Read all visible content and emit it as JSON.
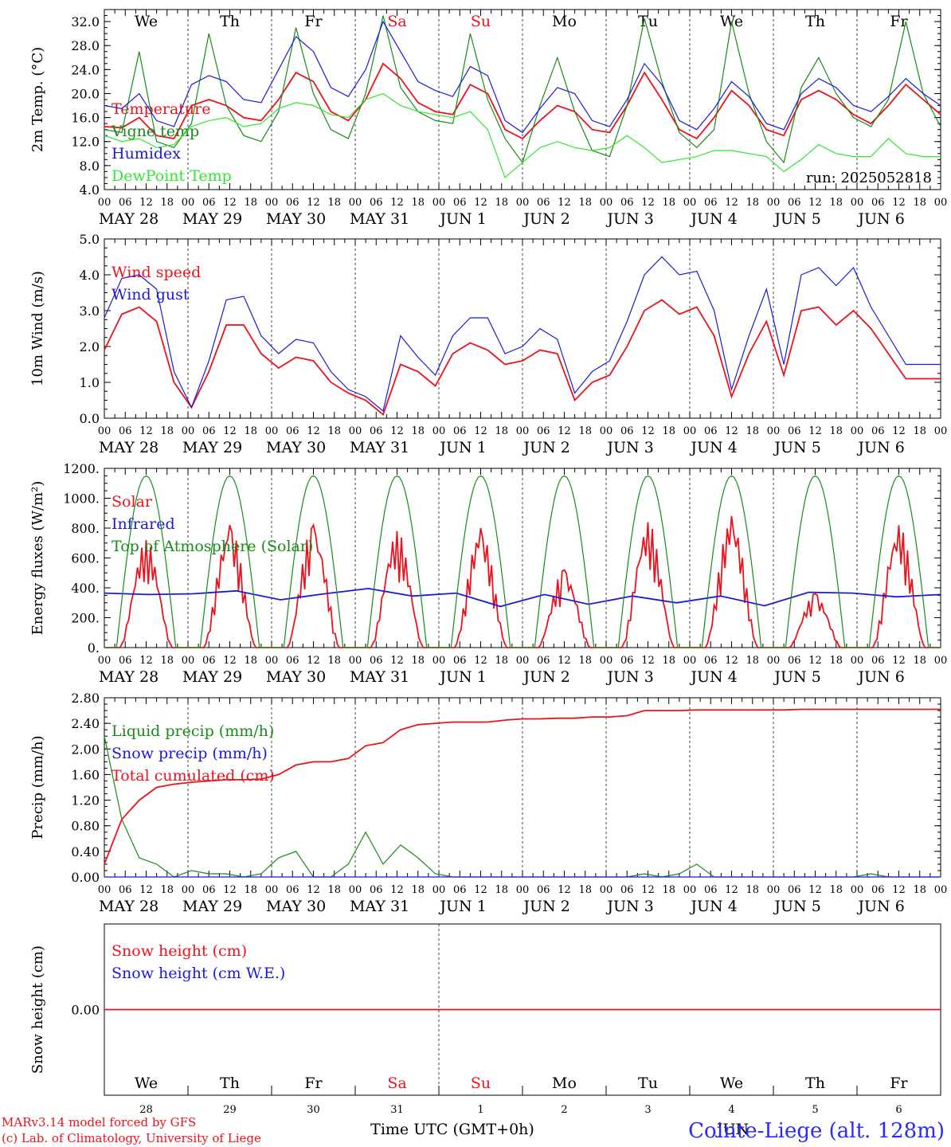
{
  "colors": {
    "temperature": "#e8141e",
    "vigne": "#1a8a1a",
    "humidex": "#1a1ad8",
    "dewpoint": "#2ee82e",
    "grid": "#444444",
    "axis": "#000000",
    "weekend": "#e8141e"
  },
  "time_axis": {
    "hour_labels": [
      "00",
      "06",
      "12",
      "18"
    ],
    "final_hour_label": "00",
    "dates": [
      "MAY 28",
      "MAY 29",
      "MAY 30",
      "MAY 31",
      "JUN  1",
      "JUN  2",
      "JUN  3",
      "JUN  4",
      "JUN  5",
      "JUN  6"
    ],
    "weekdays": [
      {
        "label": "We",
        "weekend": false
      },
      {
        "label": "Th",
        "weekend": false
      },
      {
        "label": "Fr",
        "weekend": false
      },
      {
        "label": "Sa",
        "weekend": true
      },
      {
        "label": "Su",
        "weekend": true
      },
      {
        "label": "Mo",
        "weekend": false
      },
      {
        "label": "Tu",
        "weekend": false
      },
      {
        "label": "We",
        "weekend": false
      },
      {
        "label": "Th",
        "weekend": false
      },
      {
        "label": "Fr",
        "weekend": false
      }
    ],
    "day_numbers": [
      "28",
      "29",
      "30",
      "31",
      "1",
      "2",
      "3",
      "4",
      "5",
      "6"
    ],
    "bottom_label": "Time UTC (GMT+0h)",
    "month_label": "JUN"
  },
  "footer": {
    "model_line": "MARv3.14 model forced by GFS",
    "copyright_line": "(c) Lab. of Climatology, University of Liege",
    "station": "Cointe-Liege (alt. 128m)"
  },
  "chart_data": [
    {
      "type": "line",
      "id": "temperature",
      "ylabel": "2m Temp. (°C)",
      "yticks": [
        "4.0",
        "8.0",
        "12.0",
        "16.0",
        "20.0",
        "24.0",
        "28.0",
        "32.0"
      ],
      "ylim": [
        4,
        34
      ],
      "run_label": "run: 2025052818",
      "x_unit": "hours since MAY 28 00 UTC (step 6h)",
      "series": [
        {
          "name": "Temperature",
          "color_key": "temperature",
          "values": [
            14.5,
            14.3,
            16.0,
            13.0,
            12.5,
            18.0,
            19.0,
            18.0,
            16.0,
            15.5,
            19.0,
            23.5,
            22.0,
            17.0,
            15.5,
            19.0,
            25.0,
            22.5,
            18.5,
            17.0,
            16.5,
            21.5,
            20.0,
            14.0,
            12.5,
            15.5,
            18.0,
            17.0,
            14.0,
            13.5,
            18.0,
            23.5,
            19.0,
            14.0,
            12.5,
            16.0,
            20.5,
            18.0,
            14.0,
            13.0,
            19.0,
            20.5,
            19.0,
            16.5,
            15.0,
            18.0,
            21.5,
            19.0,
            16.5
          ]
        },
        {
          "name": "Vigne temp",
          "color_key": "vigne",
          "values": [
            14.0,
            13.5,
            27.0,
            12.0,
            11.0,
            15.0,
            30.0,
            18.0,
            13.0,
            12.0,
            17.0,
            31.0,
            20.0,
            14.0,
            12.5,
            20.0,
            33.0,
            21.0,
            17.0,
            15.5,
            15.0,
            30.0,
            19.0,
            12.5,
            8.5,
            18.0,
            26.0,
            17.0,
            10.5,
            9.5,
            18.0,
            32.5,
            22.0,
            13.5,
            11.0,
            14.0,
            32.0,
            20.0,
            12.0,
            8.5,
            21.0,
            26.0,
            20.0,
            16.0,
            14.5,
            19.0,
            32.0,
            20.0,
            14.5
          ]
        },
        {
          "name": "Humidex",
          "color_key": "humidex",
          "values": [
            18.0,
            17.5,
            20.0,
            15.5,
            14.5,
            21.5,
            23.0,
            22.0,
            19.0,
            18.5,
            24.0,
            29.5,
            27.0,
            21.0,
            19.5,
            24.0,
            32.0,
            27.0,
            22.0,
            20.5,
            19.5,
            24.5,
            23.0,
            15.5,
            13.5,
            17.5,
            21.0,
            20.0,
            15.5,
            14.5,
            19.0,
            25.0,
            21.5,
            15.5,
            14.0,
            17.5,
            22.0,
            19.5,
            15.0,
            14.0,
            20.0,
            22.5,
            21.0,
            18.0,
            17.0,
            19.5,
            22.5,
            20.0,
            18.0
          ]
        },
        {
          "name": "DewPoint Temp",
          "color_key": "dewpoint",
          "values": [
            13.0,
            12.0,
            12.5,
            11.0,
            11.5,
            14.5,
            15.5,
            16.0,
            14.5,
            15.0,
            17.5,
            18.5,
            18.0,
            16.5,
            16.0,
            19.0,
            20.0,
            18.0,
            17.0,
            16.5,
            16.0,
            17.0,
            14.0,
            6.0,
            8.5,
            11.0,
            12.0,
            11.0,
            10.5,
            11.0,
            13.0,
            11.0,
            8.5,
            9.0,
            9.5,
            10.5,
            10.5,
            10.0,
            9.5,
            7.0,
            9.0,
            11.5,
            10.0,
            9.5,
            9.5,
            12.5,
            10.0,
            9.5,
            9.5
          ]
        }
      ]
    },
    {
      "type": "line",
      "id": "wind",
      "ylabel": "10m Wind (m/s)",
      "yticks": [
        "0.0",
        "1.0",
        "2.0",
        "3.0",
        "4.0",
        "5.0"
      ],
      "ylim": [
        0,
        5
      ],
      "x_unit": "hours since MAY 28 00 UTC (step 6h)",
      "series": [
        {
          "name": "Wind speed",
          "color_key": "temperature",
          "values": [
            1.9,
            2.9,
            3.1,
            2.7,
            1.0,
            0.3,
            1.3,
            2.6,
            2.6,
            1.8,
            1.4,
            1.7,
            1.6,
            1.0,
            0.7,
            0.5,
            0.1,
            1.5,
            1.3,
            0.9,
            1.8,
            2.1,
            1.9,
            1.5,
            1.6,
            1.9,
            1.8,
            0.5,
            1.0,
            1.2,
            2.0,
            3.0,
            3.3,
            2.9,
            3.1,
            2.3,
            0.6,
            1.8,
            2.7,
            1.2,
            3.0,
            3.1,
            2.6,
            3.0,
            2.5,
            1.8,
            1.1,
            1.1,
            1.1
          ]
        },
        {
          "name": "Wind gust",
          "color_key": "humidex",
          "values": [
            2.8,
            3.9,
            4.0,
            3.6,
            1.3,
            0.3,
            1.6,
            3.3,
            3.4,
            2.3,
            1.8,
            2.2,
            2.1,
            1.3,
            0.8,
            0.6,
            0.2,
            2.3,
            1.7,
            1.2,
            2.3,
            2.8,
            2.8,
            1.8,
            2.0,
            2.5,
            2.2,
            0.7,
            1.3,
            1.6,
            2.7,
            4.0,
            4.5,
            4.0,
            4.1,
            3.0,
            0.8,
            2.3,
            3.6,
            1.5,
            4.0,
            4.2,
            3.7,
            4.2,
            3.1,
            2.3,
            1.5,
            1.5,
            1.5
          ]
        }
      ]
    },
    {
      "type": "line",
      "id": "energy",
      "ylabel": "Energy fluxes (W/m²)",
      "yticks": [
        "0.",
        "200.",
        "400.",
        "600.",
        "800.",
        "1000.",
        "1200."
      ],
      "ylim": [
        0,
        1200
      ],
      "x_unit": "hours since MAY 28 00 UTC",
      "series": [
        {
          "name": "Solar",
          "color_key": "temperature",
          "note": "daily peak values",
          "values": [
            720,
            820,
            820,
            780,
            800,
            520,
            840,
            880,
            360,
            820
          ]
        },
        {
          "name": "Infrared",
          "color_key": "humidex",
          "values": [
            365,
            355,
            360,
            380,
            320,
            360,
            395,
            345,
            365,
            275,
            355,
            290,
            345,
            300,
            345,
            280,
            370,
            365,
            340,
            355
          ]
        },
        {
          "name": "Top of Atmosphere (Solar)",
          "color_key": "vigne",
          "note": "daily peak values",
          "values": [
            1150,
            1150,
            1150,
            1150,
            1150,
            1150,
            1150,
            1150,
            1150,
            1150
          ]
        }
      ]
    },
    {
      "type": "line",
      "id": "precip",
      "ylabel": "Precip (mm/h)",
      "yticks": [
        "0.00",
        "0.40",
        "0.80",
        "1.20",
        "1.60",
        "2.00",
        "2.40",
        "2.80"
      ],
      "ylim": [
        0,
        2.8
      ],
      "x_unit": "hours since MAY 28 00 UTC (step 6h)",
      "series": [
        {
          "name": "Liquid precip (mm/h)",
          "color_key": "vigne",
          "values": [
            2.2,
            0.9,
            0.3,
            0.2,
            0.0,
            0.1,
            0.05,
            0.05,
            0.0,
            0.05,
            0.3,
            0.4,
            0.0,
            0.0,
            0.2,
            0.7,
            0.2,
            0.5,
            0.3,
            0.05,
            0.0,
            0.0,
            0.0,
            0.0,
            0.0,
            0.0,
            0.0,
            0.0,
            0.0,
            0.0,
            0.0,
            0.05,
            0.0,
            0.05,
            0.2,
            0.0,
            0.0,
            0.0,
            0.0,
            0.0,
            0.0,
            0.0,
            0.0,
            0.0,
            0.05,
            0.0,
            0.0,
            0.0,
            0.0
          ]
        },
        {
          "name": "Snow precip (mm/h)",
          "color_key": "humidex",
          "values": [
            0,
            0,
            0,
            0,
            0,
            0,
            0,
            0,
            0,
            0,
            0,
            0,
            0,
            0,
            0,
            0,
            0,
            0,
            0,
            0,
            0,
            0,
            0,
            0,
            0,
            0,
            0,
            0,
            0,
            0,
            0,
            0,
            0,
            0,
            0,
            0,
            0,
            0,
            0,
            0,
            0,
            0,
            0,
            0,
            0,
            0,
            0,
            0,
            0
          ]
        },
        {
          "name": "Total cumulated (cm)",
          "color_key": "temperature",
          "values": [
            0.2,
            0.9,
            1.2,
            1.4,
            1.45,
            1.48,
            1.5,
            1.52,
            1.52,
            1.53,
            1.6,
            1.75,
            1.8,
            1.8,
            1.85,
            2.05,
            2.1,
            2.3,
            2.38,
            2.4,
            2.42,
            2.42,
            2.42,
            2.45,
            2.47,
            2.47,
            2.48,
            2.48,
            2.5,
            2.5,
            2.52,
            2.6,
            2.6,
            2.6,
            2.61,
            2.61,
            2.61,
            2.61,
            2.61,
            2.61,
            2.62,
            2.62,
            2.62,
            2.62,
            2.62,
            2.62,
            2.62,
            2.62,
            2.62
          ]
        }
      ]
    },
    {
      "type": "line",
      "id": "snow",
      "ylabel": "Snow height (cm)",
      "yticks": [
        "0.00"
      ],
      "ylim": [
        -1,
        1
      ],
      "x_unit": "hours since MAY 28 00 UTC",
      "series": [
        {
          "name": "Snow height (cm)",
          "color_key": "temperature",
          "values": [
            0,
            0
          ]
        },
        {
          "name": "Snow height (cm W.E.)",
          "color_key": "humidex",
          "values": []
        }
      ]
    }
  ]
}
